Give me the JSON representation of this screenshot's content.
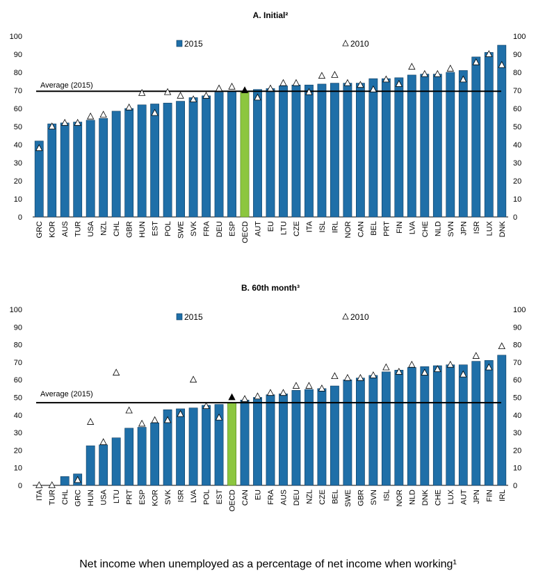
{
  "colors": {
    "bar": "#1f6fa8",
    "bar_edge": "#0b3a5e",
    "oecd_bar": "#8cc63f",
    "oecd_edge": "#4f7f1a"
  },
  "caption": "Net income when unemployed as a percentage of net income when working¹",
  "chart_data": [
    {
      "type": "bar",
      "title": "A. Initial²",
      "ylim": [
        0,
        100
      ],
      "yticks": [
        "0",
        "10",
        "20",
        "30",
        "40",
        "50",
        "60",
        "70",
        "80",
        "90",
        "100"
      ],
      "average_label": "Average (2015)",
      "average_value": 69.5,
      "legend": {
        "bar": "2015",
        "marker": "2010"
      },
      "highlight_category": "OECD",
      "categories": [
        "GRC",
        "KOR",
        "AUS",
        "TUR",
        "USA",
        "NZL",
        "CHL",
        "GBR",
        "HUN",
        "EST",
        "POL",
        "SWE",
        "SVK",
        "FRA",
        "DEU",
        "ESP",
        "OECD",
        "AUT",
        "EU",
        "LTU",
        "CZE",
        "ITA",
        "ISL",
        "IRL",
        "NOR",
        "CAN",
        "BEL",
        "PRT",
        "FIN",
        "LVA",
        "CHE",
        "NLD",
        "SVN",
        "JPN",
        "ISR",
        "LUX",
        "DNK"
      ],
      "series": [
        {
          "name": "2015",
          "values": [
            42,
            51.5,
            52,
            52.5,
            53.5,
            54.5,
            58.5,
            60,
            62,
            62.5,
            63,
            64,
            66,
            67,
            69,
            69.5,
            69.5,
            70.5,
            71,
            72.5,
            73,
            73,
            73.5,
            74,
            74,
            74,
            76.5,
            76.5,
            77,
            78.5,
            79,
            79,
            80,
            81,
            88.5,
            91,
            95
          ]
        },
        {
          "name": "2010",
          "values": [
            38,
            50,
            52,
            52,
            55.5,
            56.5,
            null,
            60.5,
            68.5,
            57.5,
            69,
            67,
            65,
            67,
            71,
            72,
            70,
            66,
            71,
            74,
            74,
            69,
            78,
            78.5,
            74,
            73,
            70.5,
            76,
            73.5,
            83,
            79,
            79,
            82,
            76,
            85.5,
            90,
            84
          ]
        }
      ]
    },
    {
      "type": "bar",
      "title": "B. 60th month³",
      "ylim": [
        0,
        100
      ],
      "yticks": [
        "0",
        "10",
        "20",
        "30",
        "40",
        "50",
        "60",
        "70",
        "80",
        "90",
        "100"
      ],
      "average_label": "Average (2015)",
      "average_value": 47,
      "legend": {
        "bar": "2015",
        "marker": "2010"
      },
      "highlight_category": "OECD",
      "categories": [
        "ITA",
        "TUR",
        "CHL",
        "GRC",
        "HUN",
        "USA",
        "LTU",
        "PRT",
        "ESP",
        "KOR",
        "SVK",
        "ISR",
        "LVA",
        "POL",
        "EST",
        "OECD",
        "CAN",
        "EU",
        "FRA",
        "AUS",
        "DEU",
        "NZL",
        "CZE",
        "BEL",
        "SWE",
        "GBR",
        "SVN",
        "ISL",
        "NOR",
        "NLD",
        "DNK",
        "CHE",
        "LUX",
        "AUT",
        "JPN",
        "FIN",
        "IRL"
      ],
      "series": [
        {
          "name": "2015",
          "values": [
            0,
            0,
            5,
            6.5,
            22.5,
            23,
            27,
            32.5,
            33,
            35.5,
            43,
            43.5,
            44,
            45.5,
            46,
            47,
            48.5,
            50,
            51.5,
            52,
            54,
            54.5,
            55,
            56.5,
            60,
            61,
            62.5,
            64.5,
            65.5,
            67,
            67.5,
            68,
            68.5,
            68.5,
            70.5,
            71,
            74
          ]
        },
        {
          "name": "2010",
          "values": [
            0,
            0,
            null,
            3,
            36,
            24.5,
            64,
            42.5,
            35,
            37,
            37,
            40.5,
            60,
            45,
            38.5,
            50,
            49,
            50.5,
            52.5,
            52.5,
            56.5,
            56.5,
            55,
            62,
            61,
            61,
            62.5,
            67,
            64.5,
            68.5,
            64,
            66,
            68.5,
            63,
            73.5,
            67,
            79
          ]
        }
      ]
    }
  ]
}
